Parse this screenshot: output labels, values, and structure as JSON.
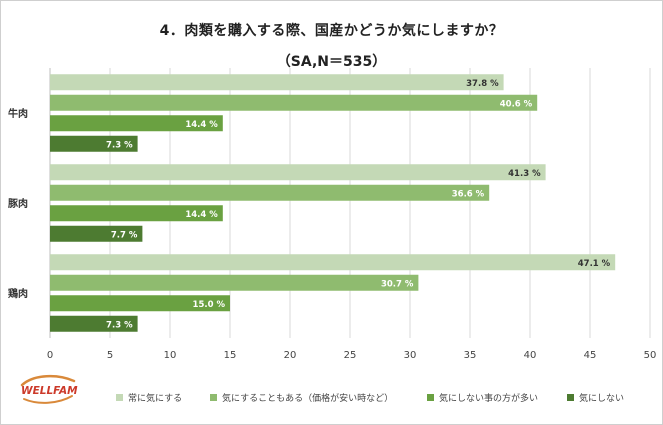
{
  "chart_data": {
    "type": "bar",
    "orientation": "horizontal",
    "title": "4．肉類を購入する際、国産かどうか気にしますか？",
    "subtitle": "（SA,N＝535）",
    "categories": [
      "牛肉",
      "豚肉",
      "鶏肉"
    ],
    "series": [
      {
        "name": "常に気にする",
        "color": "#c4d9b6",
        "values": [
          37.8,
          41.3,
          47.1
        ]
      },
      {
        "name": "気にすることもある（価格が安い時など）",
        "color": "#8fbb6f",
        "values": [
          40.6,
          36.6,
          30.7
        ]
      },
      {
        "name": "気にしない事の方が多い",
        "color": "#6aa141",
        "values": [
          14.4,
          14.4,
          15.0
        ]
      },
      {
        "name": "気にしない",
        "color": "#4d7b31",
        "values": [
          7.3,
          7.7,
          7.3
        ]
      }
    ],
    "xlim": [
      0,
      50
    ],
    "xticks": [
      0,
      5,
      10,
      15,
      20,
      25,
      30,
      35,
      40,
      45,
      50
    ],
    "value_suffix": " %",
    "grid": true,
    "legend": "bottom"
  },
  "logo_text": "WELLFAM"
}
